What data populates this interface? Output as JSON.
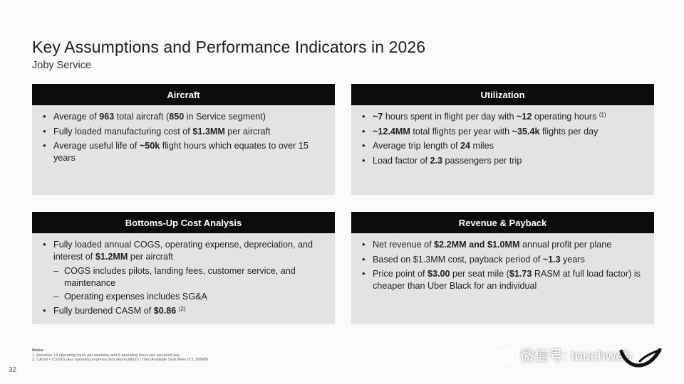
{
  "title": "Key Assumptions and Performance Indicators in 2026",
  "subtitle": "Joby Service",
  "panels": {
    "aircraft": {
      "header": "Aircraft",
      "b1": [
        "Average of ",
        "963",
        " total aircraft (",
        "850",
        " in Service segment)"
      ],
      "b2": [
        "Fully loaded manufacturing cost of ",
        "$1.3MM",
        " per aircraft"
      ],
      "b3": [
        "Average useful life of ",
        "~50k",
        " flight hours which equates to over 15 years"
      ]
    },
    "utilization": {
      "header": "Utilization",
      "b1": [
        "~7",
        " hours spent in flight per day with ",
        "~12",
        " operating hours ",
        "(1)"
      ],
      "b2": [
        "~12.4MM",
        " total flights per year with ",
        "~35.4k",
        " flights per day"
      ],
      "b3": [
        "Average trip length of ",
        "24",
        " miles"
      ],
      "b4": [
        "Load factor of ",
        "2.3",
        " passengers per trip"
      ]
    },
    "cost": {
      "header": "Bottoms-Up Cost Analysis",
      "b1": [
        "Fully loaded annual COGS, operating expense, depreciation, and interest of ",
        "$1.2MM",
        " per aircraft"
      ],
      "d1": "COGS includes pilots, landing fees, customer service, and maintenance",
      "d2": "Operating expenses includes SG&A",
      "b2": [
        "Fully burdened CASM of ",
        "$0.86",
        " ",
        "(2)"
      ]
    },
    "revenue": {
      "header": "Revenue & Payback",
      "b1": [
        "Net revenue of ",
        "$2.2MM and $1.0MM",
        " annual profit per plane"
      ],
      "b2": [
        "Based on $1.3MM cost, payback period of ",
        "~1.3",
        " years"
      ],
      "b3": [
        "Price point of ",
        "$3.00",
        " per seat mile (",
        "$1.73",
        " RASM at full load factor) is cheaper than Uber Black for an individual"
      ]
    }
  },
  "notes": {
    "label": "Notes:",
    "n1": "1.  Assumes 14 operating hours per weekday and 8 operating hours per weekend day",
    "n2": "2.  CASM = (COGS plus operating expense plus depreciation) / Total Available Seat Miles of 1,188MM"
  },
  "page_number": "32",
  "watermark": "微信号: touchweb",
  "colors": {
    "header_bg": "#0c0c0c",
    "panel_bg": "#e3e3e3",
    "page_bg": "#fafafa"
  }
}
